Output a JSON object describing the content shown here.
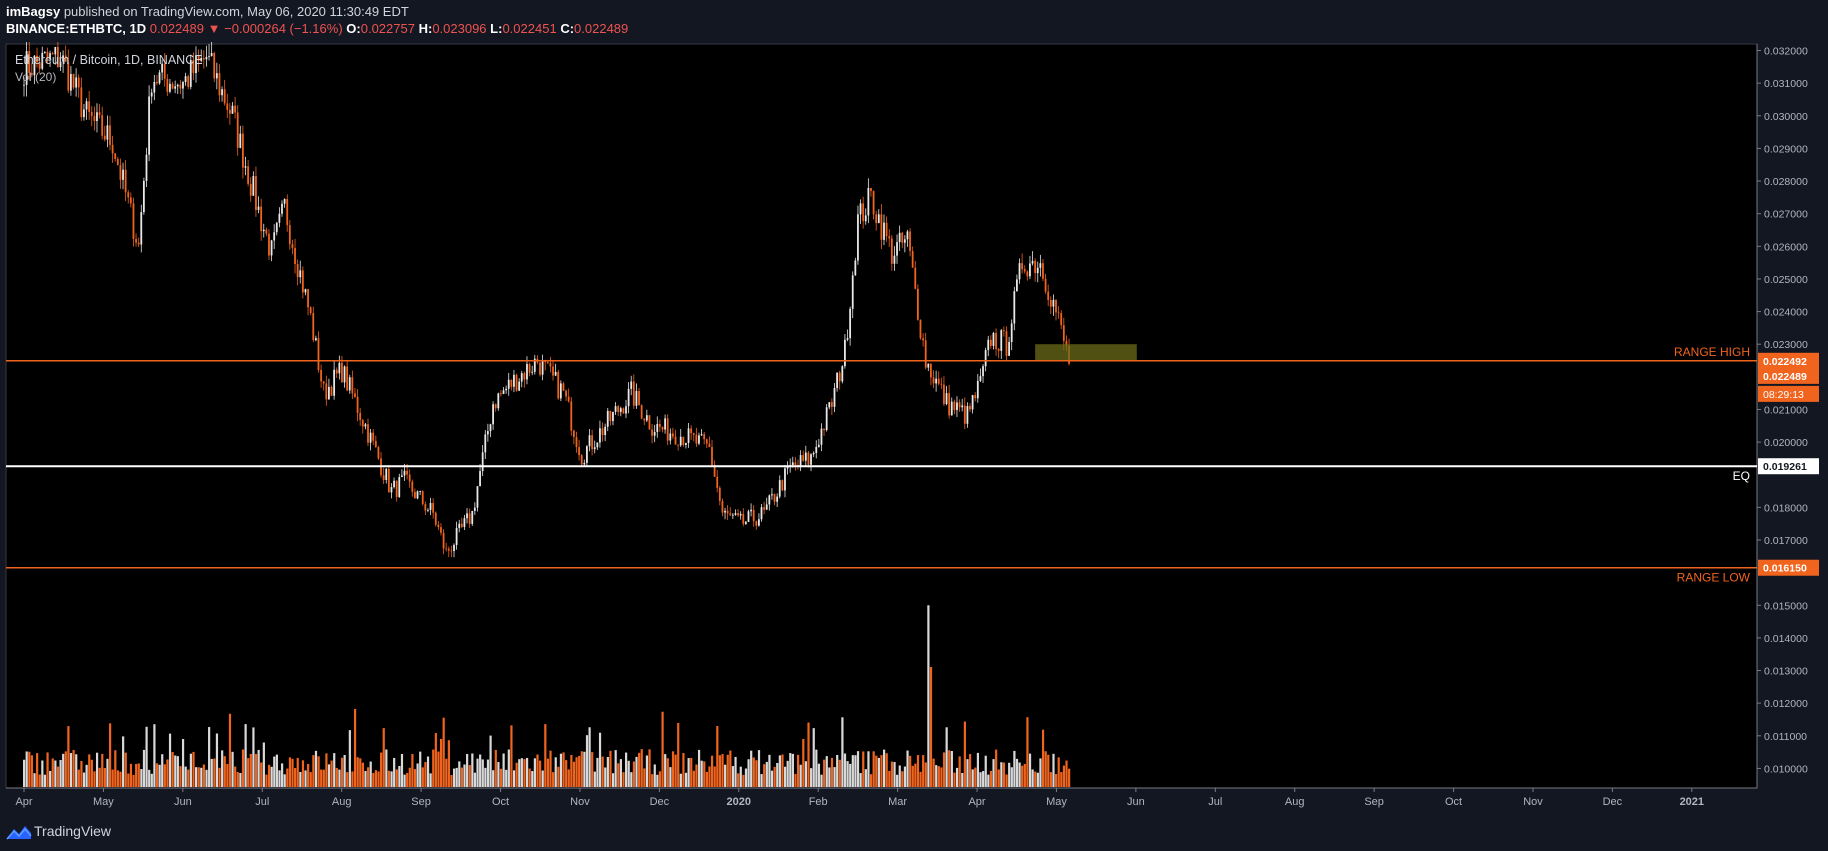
{
  "header": {
    "author": "imBagsy",
    "published_text": " published on TradingView.com, May 06, 2020 11:30:49 EDT",
    "symbol": "BINANCE:ETHBTC, 1D",
    "last": "0.022489",
    "change": "−0.000264 (−1.16%)",
    "open_label": "O:",
    "open": "0.022757",
    "high_label": "H:",
    "high": "0.023096",
    "low_label": "L:",
    "low": "0.022451",
    "close_label": "C:",
    "close": "0.022489"
  },
  "footer": {
    "brand": "TradingView"
  },
  "colors": {
    "up": "#e8e8e8",
    "down": "#f0641e",
    "range_line": "#f0641e",
    "eq_line": "#ffffff",
    "highlight": "#6b6b1a",
    "panel_bg": "#000000",
    "page_bg": "#131722"
  },
  "chart_data": {
    "type": "candlestick",
    "title": "Ethereum / Bitcoin, 1D, BINANCE",
    "volume_label": "Vol (20)",
    "x_ticks": [
      "Apr",
      "May",
      "Jun",
      "Jul",
      "Aug",
      "Sep",
      "Oct",
      "Nov",
      "Dec",
      "2020",
      "Feb",
      "Mar",
      "Apr",
      "May",
      "Jun",
      "Jul",
      "Aug",
      "Sep",
      "Oct",
      "Nov",
      "Dec",
      "2021"
    ],
    "y_ticks": [
      "0.032000",
      "0.031000",
      "0.030000",
      "0.029000",
      "0.028000",
      "0.027000",
      "0.026000",
      "0.025000",
      "0.024000",
      "0.023000",
      "0.021000",
      "0.020000",
      "0.018000",
      "0.017000",
      "0.015000",
      "0.014000",
      "0.013000",
      "0.012000",
      "0.011000",
      "0.010000"
    ],
    "ylim": [
      0.0094,
      0.0322
    ],
    "levels": [
      {
        "name": "RANGE HIGH",
        "value": 0.022492,
        "label": "0.022492"
      },
      {
        "name": "EQ",
        "value": 0.019261,
        "label": "0.019261"
      },
      {
        "name": "RANGE LOW",
        "value": 0.01615,
        "label": "0.016150"
      }
    ],
    "last_price_label": "0.022489",
    "countdown": "08:29:13",
    "highlight_zone": {
      "from": "May 2020",
      "to": "May 2020",
      "low": 0.0225,
      "high": 0.023
    },
    "price_anchors": [
      [
        "2019-04-01",
        0.0315
      ],
      [
        "2019-04-15",
        0.0318
      ],
      [
        "2019-04-25",
        0.03
      ],
      [
        "2019-05-05",
        0.0292
      ],
      [
        "2019-05-15",
        0.026
      ],
      [
        "2019-05-20",
        0.0312
      ],
      [
        "2019-06-01",
        0.031
      ],
      [
        "2019-06-10",
        0.0318
      ],
      [
        "2019-06-20",
        0.03
      ],
      [
        "2019-07-01",
        0.0268
      ],
      [
        "2019-07-05",
        0.0258
      ],
      [
        "2019-07-10",
        0.0272
      ],
      [
        "2019-07-15",
        0.0255
      ],
      [
        "2019-07-20",
        0.0238
      ],
      [
        "2019-07-25",
        0.0215
      ],
      [
        "2019-08-01",
        0.0222
      ],
      [
        "2019-08-10",
        0.0205
      ],
      [
        "2019-08-20",
        0.0185
      ],
      [
        "2019-08-25",
        0.0188
      ],
      [
        "2019-09-05",
        0.0178
      ],
      [
        "2019-09-10",
        0.0166
      ],
      [
        "2019-09-20",
        0.0178
      ],
      [
        "2019-09-28",
        0.0212
      ],
      [
        "2019-10-05",
        0.0218
      ],
      [
        "2019-10-15",
        0.0225
      ],
      [
        "2019-10-25",
        0.0215
      ],
      [
        "2019-11-01",
        0.0196
      ],
      [
        "2019-11-10",
        0.0205
      ],
      [
        "2019-11-20",
        0.0215
      ],
      [
        "2019-11-28",
        0.0205
      ],
      [
        "2019-12-10",
        0.0202
      ],
      [
        "2019-12-20",
        0.0198
      ],
      [
        "2019-12-25",
        0.0178
      ],
      [
        "2020-01-01",
        0.0175
      ],
      [
        "2020-01-10",
        0.0178
      ],
      [
        "2020-01-20",
        0.0192
      ],
      [
        "2020-01-28",
        0.0195
      ],
      [
        "2020-02-05",
        0.0212
      ],
      [
        "2020-02-10",
        0.0228
      ],
      [
        "2020-02-15",
        0.0268
      ],
      [
        "2020-02-20",
        0.0275
      ],
      [
        "2020-02-28",
        0.0258
      ],
      [
        "2020-03-05",
        0.0262
      ],
      [
        "2020-03-12",
        0.0225
      ],
      [
        "2020-03-20",
        0.0212
      ],
      [
        "2020-03-28",
        0.0208
      ],
      [
        "2020-04-02",
        0.0218
      ],
      [
        "2020-04-06",
        0.0232
      ],
      [
        "2020-04-12",
        0.023
      ],
      [
        "2020-04-18",
        0.0255
      ],
      [
        "2020-04-25",
        0.0255
      ],
      [
        "2020-05-01",
        0.024
      ],
      [
        "2020-05-06",
        0.022489
      ]
    ],
    "volume_spike": {
      "date": "2020-03-13",
      "value": 0.015
    }
  }
}
